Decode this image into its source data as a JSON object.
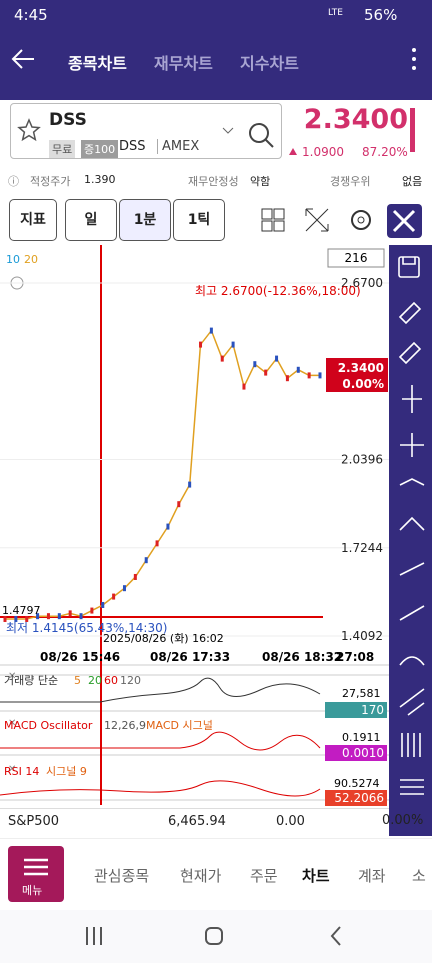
{
  "status_bar": {
    "time": "4:45",
    "network": "LTE",
    "battery": "56%"
  },
  "nav": {
    "tabs": [
      "종목차트",
      "재무차트",
      "지수차트"
    ]
  },
  "stock": {
    "name": "DSS",
    "badges": [
      "무료",
      "증100"
    ],
    "ticker": "DSS",
    "exchange": "AMEX",
    "price": "2.3400",
    "change": "1.0900",
    "change_pct": "87.20%"
  },
  "info": [
    {
      "label": "적정주가",
      "value": "1.390"
    },
    {
      "label": "재무안정성",
      "value": "약함"
    },
    {
      "label": "경쟁우위",
      "value": "없음"
    }
  ],
  "toolbar": {
    "indicator": "지표",
    "periods": [
      "일",
      "1분",
      "1틱"
    ]
  },
  "chart": {
    "ma_labels": [
      "10",
      "20"
    ],
    "count": "216",
    "high_label": "최고 2.6700(-12.36%,18:00)",
    "low_label": "최저 1.4145(65.43%,14:30)",
    "left_price": "1.4797",
    "current_price": "2.3400",
    "current_pct": "0.00%",
    "crosshair_time": "2025/08/26 (화) 16:02",
    "yticks": [
      {
        "value": 2.67,
        "label": "2.6700"
      },
      2.0396,
      1.7244,
      1.4092
    ],
    "close": [
      1.47,
      1.47,
      1.47,
      1.48,
      1.48,
      1.48,
      1.49,
      1.48,
      1.5,
      1.52,
      1.55,
      1.58,
      1.62,
      1.68,
      1.74,
      1.8,
      1.88,
      1.95,
      2.45,
      2.5,
      2.4,
      2.45,
      2.3,
      2.38,
      2.35,
      2.4,
      2.33,
      2.36,
      2.34,
      2.34
    ],
    "xlabels": [
      "08/26 15:46",
      "08/26 17:33",
      "08/26 18:32",
      "27:08"
    ]
  },
  "volume": {
    "label": "거래량 단순",
    "periods": [
      "5",
      "20",
      "60",
      "120"
    ],
    "max": "27,581",
    "current": "170"
  },
  "macd": {
    "label": "MACD Oscillator",
    "params": "12,26,9",
    "signal": "MACD 시그널",
    "max": "0.1911",
    "current": "0.0010"
  },
  "rsi": {
    "label": "RSI 14",
    "signal": "시그널 9",
    "max": "90.5274",
    "current": "52.2066"
  },
  "ticker_bar": {
    "name": "S&P500",
    "value": "6,465.94",
    "change": "0.00",
    "change_pct": "0.00%"
  },
  "bottom_tabs": {
    "menu": "메뉴",
    "tabs": [
      "관심종목",
      "현재가",
      "주문",
      "차트",
      "계좌",
      "소"
    ]
  }
}
